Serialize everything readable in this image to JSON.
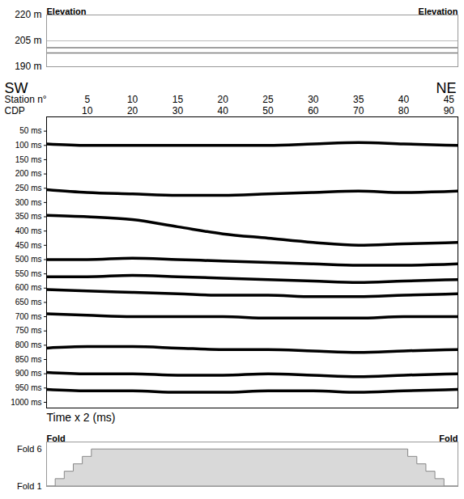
{
  "chart_data": [
    {
      "type": "line",
      "corner_labels": [
        "Elevation",
        "Elevation"
      ],
      "x": [
        1,
        92
      ],
      "series": [
        {
          "values": [
            201,
            201
          ]
        },
        {
          "values": [
            198,
            198
          ]
        }
      ],
      "color": "#808080",
      "xlim": [
        1,
        92
      ],
      "ylim": [
        190,
        220
      ],
      "yticks": [
        {
          "value": 190,
          "label": "190 m"
        },
        {
          "value": 205,
          "label": "205 m"
        },
        {
          "value": 220,
          "label": "220 m"
        }
      ],
      "grid": true,
      "tick_labels": "y"
    },
    {
      "type": "line",
      "direction_labels": [
        "SW",
        "NE"
      ],
      "station_label": "Station n°",
      "station_ticks": [
        {
          "value": 10,
          "label": "5"
        },
        {
          "value": 20,
          "label": "10"
        },
        {
          "value": 30,
          "label": "15"
        },
        {
          "value": 40,
          "label": "20"
        },
        {
          "value": 50,
          "label": "25"
        },
        {
          "value": 60,
          "label": "30"
        },
        {
          "value": 70,
          "label": "35"
        },
        {
          "value": 80,
          "label": "40"
        },
        {
          "value": 90,
          "label": "45"
        }
      ],
      "cdp_label": "CDP",
      "xticks": [
        10,
        20,
        30,
        40,
        50,
        60,
        70,
        80,
        90
      ],
      "ylabel": "Time x 2 (ms)",
      "x": [
        1,
        10,
        20,
        30,
        40,
        50,
        60,
        70,
        80,
        92
      ],
      "series": [
        {
          "values": [
            95,
            100,
            100,
            100,
            100,
            100,
            95,
            90,
            95,
            100
          ]
        },
        {
          "values": [
            255,
            265,
            270,
            275,
            275,
            270,
            265,
            260,
            265,
            260
          ]
        },
        {
          "values": [
            345,
            350,
            360,
            385,
            410,
            425,
            440,
            450,
            445,
            440
          ]
        },
        {
          "values": [
            500,
            500,
            495,
            500,
            505,
            510,
            515,
            520,
            520,
            515
          ]
        },
        {
          "values": [
            560,
            560,
            555,
            560,
            565,
            570,
            575,
            580,
            575,
            570
          ]
        },
        {
          "values": [
            605,
            610,
            615,
            620,
            625,
            625,
            630,
            630,
            625,
            620
          ]
        },
        {
          "values": [
            690,
            695,
            700,
            700,
            700,
            705,
            705,
            705,
            700,
            700
          ]
        },
        {
          "values": [
            810,
            805,
            805,
            810,
            815,
            815,
            820,
            825,
            820,
            815
          ]
        },
        {
          "values": [
            895,
            900,
            900,
            905,
            905,
            900,
            905,
            910,
            905,
            900
          ]
        },
        {
          "values": [
            955,
            960,
            960,
            965,
            965,
            960,
            960,
            965,
            960,
            955
          ]
        }
      ],
      "color": "#000000",
      "xlim": [
        1,
        92
      ],
      "ylim": [
        0,
        1020
      ],
      "yticks": [
        {
          "value": 50,
          "label": "50 ms"
        },
        {
          "value": 100,
          "label": "100 ms"
        },
        {
          "value": 150,
          "label": "150 ms"
        },
        {
          "value": 200,
          "label": "200 ms"
        },
        {
          "value": 250,
          "label": "250 ms"
        },
        {
          "value": 300,
          "label": "300 ms"
        },
        {
          "value": 350,
          "label": "350 ms"
        },
        {
          "value": 400,
          "label": "400 ms"
        },
        {
          "value": 450,
          "label": "450 ms"
        },
        {
          "value": 500,
          "label": "500 ms"
        },
        {
          "value": 550,
          "label": "550 ms"
        },
        {
          "value": 600,
          "label": "600 ms"
        },
        {
          "value": 650,
          "label": "650 ms"
        },
        {
          "value": 700,
          "label": "700 ms"
        },
        {
          "value": 750,
          "label": "750 ms"
        },
        {
          "value": 800,
          "label": "800 ms"
        },
        {
          "value": 850,
          "label": "850 ms"
        },
        {
          "value": 900,
          "label": "900 ms"
        },
        {
          "value": 950,
          "label": "950 ms"
        },
        {
          "value": 1000,
          "label": "1000 ms"
        }
      ]
    },
    {
      "type": "area",
      "corner_labels": [
        "Fold",
        "Fold"
      ],
      "x": [
        1,
        3,
        5,
        7,
        9,
        11,
        81,
        83,
        85,
        87,
        89,
        92
      ],
      "values": [
        1,
        2,
        3,
        4,
        5,
        6,
        5,
        4,
        3,
        2,
        1,
        1
      ],
      "color": "#d9d9d9",
      "xlim": [
        1,
        92
      ],
      "ylim": [
        1,
        7
      ],
      "yticks": [
        {
          "value": 6,
          "label": "Fold 6"
        },
        {
          "value": 1,
          "label": "Fold 1"
        }
      ],
      "tick_labels": "y"
    }
  ]
}
